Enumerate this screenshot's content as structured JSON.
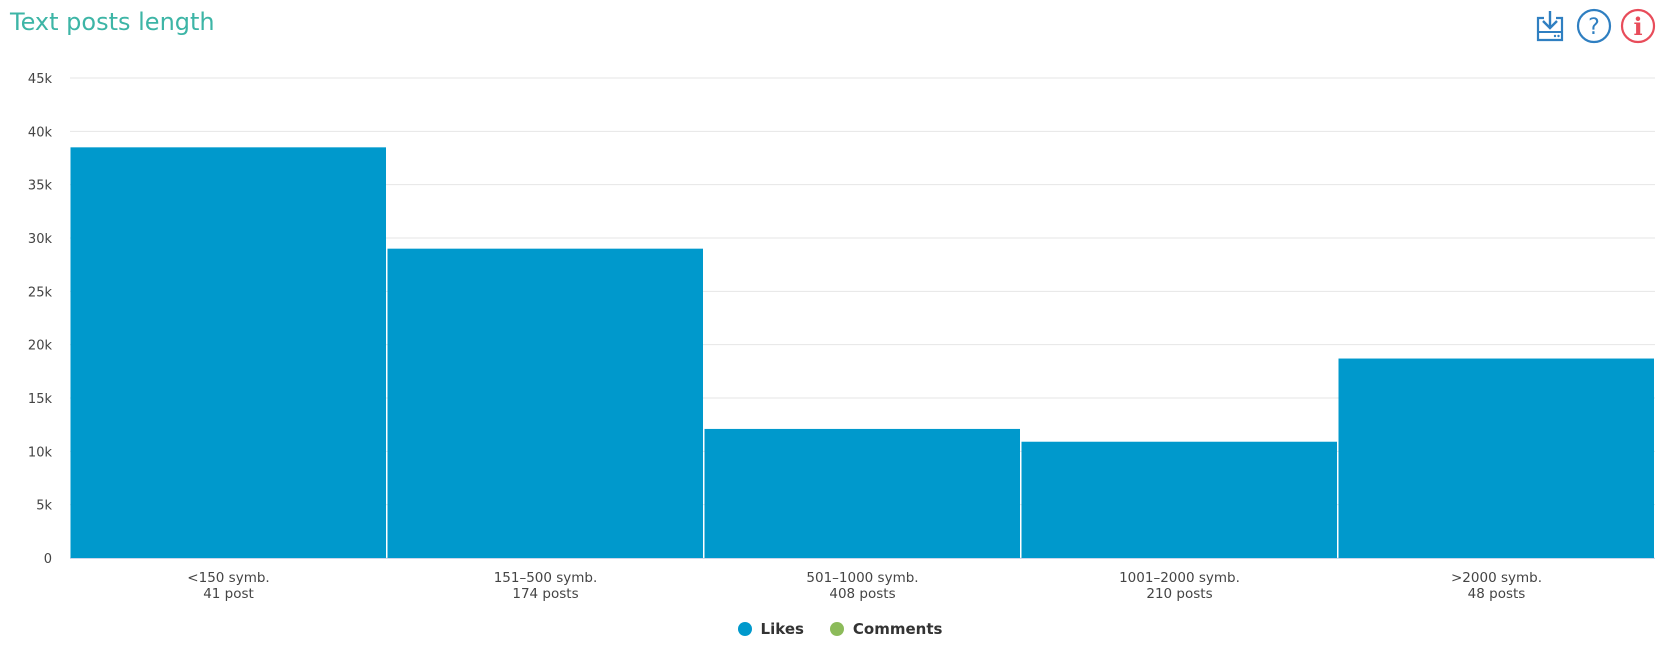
{
  "header": {
    "title": "Text posts length",
    "icons": [
      "download-icon",
      "help-icon",
      "info-icon"
    ],
    "colors": {
      "title": "#3db5a6",
      "download": "#2f7fc1",
      "help": "#2f7fc1",
      "info": "#e84c5a"
    }
  },
  "chart_data": {
    "type": "bar",
    "categories": [
      "<150 symb.",
      "151–500 symb.",
      "501–1000 symb.",
      "1001–2000 symb.",
      ">2000 symb."
    ],
    "category_sublabels": [
      "41 post",
      "174 posts",
      "408 posts",
      "210 posts",
      "48 posts"
    ],
    "series": [
      {
        "name": "Likes",
        "values": [
          38500,
          29000,
          12100,
          10900,
          18700
        ],
        "color": "#0099cc"
      },
      {
        "name": "Comments",
        "values": [
          0,
          0,
          0,
          0,
          0
        ],
        "color": "#8cbb5a"
      }
    ],
    "yticks": [
      "0",
      "5k",
      "10k",
      "15k",
      "20k",
      "25k",
      "30k",
      "35k",
      "40k",
      "45k"
    ],
    "ylim": [
      0,
      45000
    ],
    "grid": true,
    "legend_position": "bottom-center"
  }
}
